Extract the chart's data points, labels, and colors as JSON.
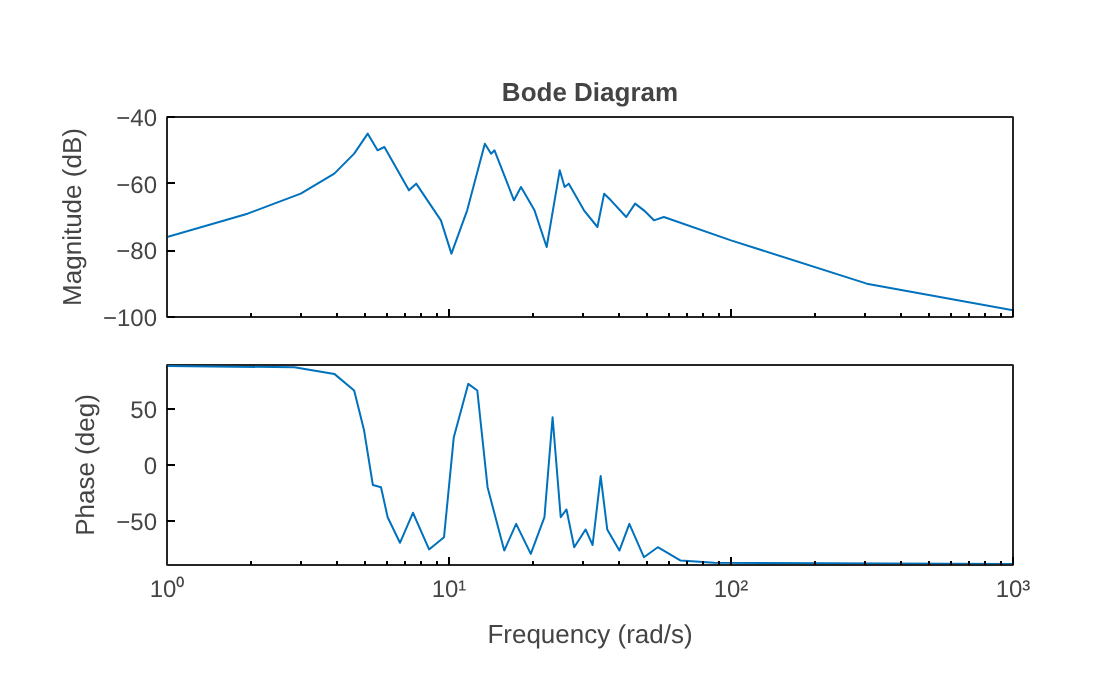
{
  "chart_data": [
    {
      "type": "line",
      "title": "Bode Diagram",
      "ylabel": "Magnitude (dB)",
      "log": "x",
      "tick_labels": "y",
      "grid": false,
      "xlim": [
        1,
        1000
      ],
      "xticks": [
        {
          "value": 1,
          "label": null
        },
        {
          "value": 10,
          "label": null
        },
        {
          "value": 100,
          "label": null
        },
        {
          "value": 1000,
          "label": null
        }
      ],
      "ylim": [
        -100,
        -40
      ],
      "yticks": [
        -100,
        -80,
        -60,
        -40
      ],
      "series": [
        {
          "color": "#0072bd",
          "x": [
            1,
            1.93,
            2.98,
            3.92,
            4.61,
            5.15,
            5.58,
            5.9,
            7.21,
            7.65,
            9.36,
            10.2,
            11.6,
            13.4,
            14.1,
            14.5,
            17.0,
            18.0,
            20.1,
            22.2,
            24.7,
            25.7,
            26.6,
            30.1,
            33.6,
            35.5,
            37.5,
            42.5,
            45.7,
            49.1,
            53.3,
            57.8,
            100,
            303,
            1000
          ],
          "values": [
            -76,
            -69,
            -63,
            -57,
            -51,
            -45,
            -50,
            -49,
            -62,
            -60,
            -71,
            -81,
            -68,
            -48,
            -51,
            -50,
            -65,
            -61,
            -68,
            -79,
            -56,
            -61,
            -60,
            -68,
            -73,
            -63,
            -65,
            -70,
            -66,
            -68,
            -71,
            -70,
            -77,
            -90,
            -98
          ]
        }
      ]
    },
    {
      "type": "line",
      "xlabel": "Frequency (rad/s)",
      "ylabel": "Phase (deg)",
      "log": "x",
      "grid": false,
      "xlim": [
        1,
        1000
      ],
      "xticks": [
        {
          "value": 1,
          "label": "10⁰"
        },
        {
          "value": 10,
          "label": "10¹"
        },
        {
          "value": 100,
          "label": "10²"
        },
        {
          "value": 1000,
          "label": "10³"
        }
      ],
      "ylim": [
        -90,
        90
      ],
      "yticks": [
        -50,
        0,
        50
      ],
      "series": [
        {
          "color": "#0072bd",
          "x": [
            1,
            2.83,
            3.92,
            4.61,
            5.0,
            5.37,
            5.74,
            6.06,
            6.7,
            7.45,
            8.5,
            9.6,
            10.4,
            11.7,
            12.6,
            13.7,
            15.7,
            17.3,
            19.5,
            21.8,
            23.3,
            24.9,
            26.1,
            27.8,
            30.5,
            32.3,
            34.5,
            36.4,
            40.2,
            43.6,
            49.1,
            55,
            66.3,
            87.1,
            1000
          ],
          "values": [
            89,
            88,
            82,
            67,
            31,
            -18,
            -20,
            -47,
            -70,
            -43,
            -76,
            -65,
            25,
            73,
            67,
            -20,
            -77,
            -53,
            -80,
            -47,
            43,
            -47,
            -40,
            -74,
            -58,
            -72,
            -10,
            -58,
            -77,
            -53,
            -83,
            -74,
            -86,
            -88,
            -89
          ]
        }
      ]
    }
  ]
}
